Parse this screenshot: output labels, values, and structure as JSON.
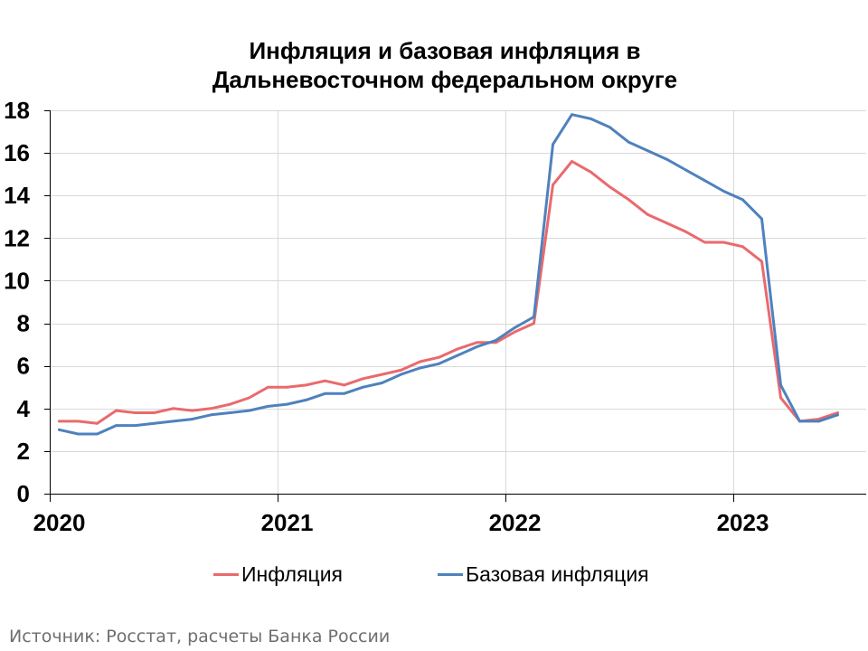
{
  "chart_data": {
    "type": "line",
    "title": "Инфляция и базовая инфляция в\nДальневосточном федеральном округе",
    "x": [
      "2020-01",
      "2020-02",
      "2020-03",
      "2020-04",
      "2020-05",
      "2020-06",
      "2020-07",
      "2020-08",
      "2020-09",
      "2020-10",
      "2020-11",
      "2020-12",
      "2021-01",
      "2021-02",
      "2021-03",
      "2021-04",
      "2021-05",
      "2021-06",
      "2021-07",
      "2021-08",
      "2021-09",
      "2021-10",
      "2021-11",
      "2021-12",
      "2022-01",
      "2022-02",
      "2022-03",
      "2022-04",
      "2022-05",
      "2022-06",
      "2022-07",
      "2022-08",
      "2022-09",
      "2022-10",
      "2022-11",
      "2022-12",
      "2023-01",
      "2023-02",
      "2023-03",
      "2023-04",
      "2023-05",
      "2023-06"
    ],
    "xlim": [
      "2020-01",
      "2023-07"
    ],
    "xticks": [
      "2020",
      "2021",
      "2022",
      "2023"
    ],
    "ylim": [
      0,
      18
    ],
    "yticks": [
      0,
      2,
      4,
      6,
      8,
      10,
      12,
      14,
      16,
      18
    ],
    "grid": true,
    "legend": "bottom",
    "series": [
      {
        "name": "Инфляция",
        "color": "#e96a6e",
        "values": [
          3.4,
          3.4,
          3.3,
          3.9,
          3.8,
          3.8,
          4.0,
          3.9,
          4.0,
          4.2,
          4.5,
          5.0,
          5.0,
          5.1,
          5.3,
          5.1,
          5.4,
          5.6,
          5.8,
          6.2,
          6.4,
          6.8,
          7.1,
          7.1,
          7.6,
          8.0,
          14.5,
          15.6,
          15.1,
          14.4,
          13.8,
          13.1,
          12.7,
          12.3,
          11.8,
          11.8,
          11.6,
          10.9,
          4.5,
          3.4,
          3.5,
          3.8
        ]
      },
      {
        "name": "Базовая инфляция",
        "color": "#4f81bd",
        "values": [
          3.0,
          2.8,
          2.8,
          3.2,
          3.2,
          3.3,
          3.4,
          3.5,
          3.7,
          3.8,
          3.9,
          4.1,
          4.2,
          4.4,
          4.7,
          4.7,
          5.0,
          5.2,
          5.6,
          5.9,
          6.1,
          6.5,
          6.9,
          7.2,
          7.8,
          8.3,
          16.4,
          17.8,
          17.6,
          17.2,
          16.5,
          16.1,
          15.7,
          15.2,
          14.7,
          14.2,
          13.8,
          12.9,
          5.1,
          3.4,
          3.4,
          3.7
        ]
      }
    ],
    "source": "Источник: Росстат, расчеты Банка России"
  }
}
